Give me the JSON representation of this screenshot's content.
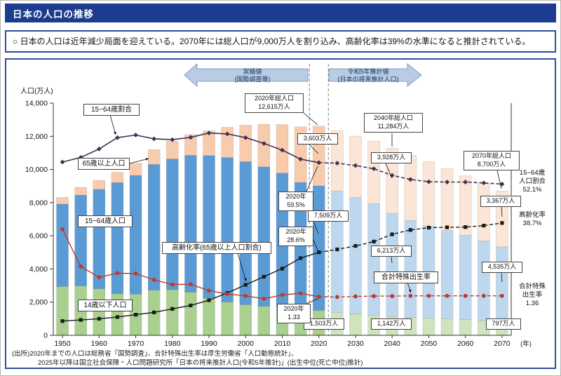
{
  "header": {
    "title": "日本の人口の推移"
  },
  "summary": {
    "text": "○ 日本の人口は近年減少局面を迎えている。2070年には総人口が9,000万人を割り込み、高齢化率は39%の水準になると推計されている。"
  },
  "ui_colors": {
    "header_bg": "#1c3d8f",
    "panel_border": "#2e4d9e"
  },
  "arrows": {
    "actual": "実績値\n(国勢調査等)",
    "projected": "令和5年推計値\n(日本の将来推計人口)"
  },
  "chart_data": {
    "type": "bar",
    "title": "",
    "ylabel": "人口(万人)",
    "x_unit": "(年)",
    "ylim": [
      0,
      14000
    ],
    "yticks": [
      0,
      2000,
      4000,
      6000,
      8000,
      10000,
      12000,
      14000
    ],
    "actual_until": 2020,
    "pct_scale": 175,
    "fertility_scale": 1750,
    "years": [
      1950,
      1955,
      1960,
      1965,
      1970,
      1975,
      1980,
      1985,
      1990,
      1995,
      2000,
      2005,
      2010,
      2015,
      2020,
      2025,
      2030,
      2035,
      2040,
      2045,
      2050,
      2055,
      2060,
      2065,
      2070
    ],
    "bar_series": [
      {
        "name": "14歳以下人口",
        "values": [
          2943,
          2980,
          2807,
          2517,
          2482,
          2722,
          2751,
          2603,
          2249,
          2001,
          1847,
          1752,
          1680,
          1589,
          1503,
          1383,
          1286,
          1216,
          1142,
          1083,
          1041,
          1001,
          953,
          889,
          797
        ]
      },
      {
        "name": "15~64歳人口",
        "values": [
          4966,
          5473,
          6000,
          6693,
          7157,
          7581,
          7883,
          8251,
          8590,
          8716,
          8622,
          8409,
          8103,
          7629,
          7509,
          7310,
          7030,
          6722,
          6213,
          5832,
          5540,
          5307,
          5078,
          4809,
          4535
        ]
      },
      {
        "name": "65歳以上人口",
        "values": [
          411,
          475,
          535,
          618,
          733,
          887,
          1065,
          1247,
          1489,
          1826,
          2201,
          2567,
          2925,
          3347,
          3603,
          3633,
          3696,
          3774,
          3928,
          3945,
          3888,
          3746,
          3581,
          3457,
          3367
        ]
      }
    ],
    "line_series": [
      {
        "name": "15~64歳割合",
        "unit": "%",
        "values": [
          59.7,
          61.3,
          64.2,
          68.1,
          69.0,
          67.7,
          67.4,
          68.2,
          69.7,
          69.4,
          68.1,
          66.1,
          63.8,
          60.7,
          59.5,
          59.3,
          58.5,
          57.4,
          55.1,
          53.7,
          52.9,
          52.8,
          52.8,
          52.5,
          52.1
        ]
      },
      {
        "name": "高齢化率(65歳以上人口割合)",
        "unit": "%",
        "values": [
          4.9,
          5.3,
          5.7,
          6.3,
          7.1,
          7.9,
          9.1,
          10.3,
          12.1,
          14.6,
          17.4,
          20.2,
          23.0,
          26.6,
          28.6,
          29.6,
          30.8,
          32.3,
          34.8,
          36.3,
          37.1,
          37.2,
          37.3,
          37.8,
          38.7
        ]
      },
      {
        "name": "合計特殊出生率",
        "unit": "",
        "values": [
          3.65,
          2.37,
          2.0,
          2.14,
          2.13,
          1.91,
          1.75,
          1.76,
          1.54,
          1.42,
          1.36,
          1.26,
          1.39,
          1.45,
          1.33,
          1.32,
          1.34,
          1.35,
          1.35,
          1.36,
          1.36,
          1.36,
          1.36,
          1.36,
          1.36
        ]
      }
    ],
    "colors": {
      "actual": {
        "young": "#a9d08e",
        "working": "#5b9bd5",
        "old": "#f8cbad"
      },
      "projected": {
        "young": "#cfe4bc",
        "working": "#bdd7ee",
        "old": "#fbe5d6"
      },
      "ratio_line": "#403152",
      "aging_line": "#1a1a1a",
      "fertility_line": "#c0392b",
      "boundary": "#808080",
      "arrow_fill": "#b8cce4",
      "arrow_border": "#6d8ab8",
      "arrow_text": "#17365d"
    }
  },
  "annotations": {
    "ratio_label": "15~64歳割合",
    "old_label": "65歳以上人口",
    "working_label": "15~64歳人口",
    "young_label": "14歳以下人口",
    "aging_label": "高齢化率(65歳以上人口割合)",
    "fertility_label": "合計特殊出生率",
    "total_2020": "2020年総人口\n12,615万人",
    "total_2040": "2040年総人口\n11,284万人",
    "total_2070": "2070年総人口\n8,700万人",
    "old_2020": "3,603万人",
    "old_2040": "3,928万人",
    "old_2070": "3,367万人",
    "working_2020": "7,509万人",
    "working_2040": "6,213万人",
    "working_2070": "4,535万人",
    "young_2020": "1,503万人",
    "young_2040": "1,142万人",
    "young_2070": "797万人",
    "ratio_2020": "2020年\n59.5%",
    "aging_2020": "2020年\n28.6%",
    "fertility_2020": "2020年\n1.33"
  },
  "right_labels": {
    "ratio": "15~64歳\n人口割合\n52.1%",
    "aging": "高齢化率\n38.7%",
    "fertility": "合計特殊\n出生率\n1.36"
  },
  "source": {
    "line1": "(出所)2020年までの人口は総務省「国勢調査」、合計特殊出生率は厚生労働省「人口動態統計」、",
    "line2": "2025年以降は国立社会保障・人口問題研究所「日本の将来推計人口(令和5年推計)」(出生中位(死亡中位)推計)"
  }
}
